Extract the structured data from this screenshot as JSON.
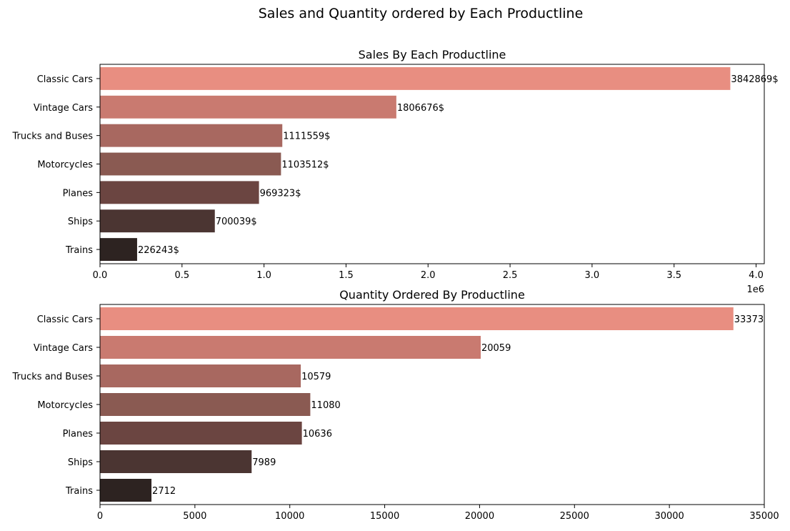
{
  "suptitle": "Sales and Quantity ordered by Each Productline",
  "chart_data": [
    {
      "type": "bar",
      "orientation": "horizontal",
      "title": "Sales By Each Productline",
      "xlabel": "",
      "ylabel": "",
      "categories": [
        "Classic Cars",
        "Vintage Cars",
        "Trucks and Buses",
        "Motorcycles",
        "Planes",
        "Ships",
        "Trains"
      ],
      "values": [
        3842869,
        1806676,
        1111559,
        1103512,
        969323,
        700039,
        226243
      ],
      "labels": [
        "3842869$",
        "1806676$",
        "1111559$",
        "1103512$",
        "969323$",
        "700039$",
        "226243$"
      ],
      "xlim": [
        0,
        4050000
      ],
      "xticks": [
        0,
        500000,
        1000000,
        1500000,
        2000000,
        2500000,
        3000000,
        3500000,
        4000000
      ],
      "xtick_labels": [
        "0.0",
        "0.5",
        "1.0",
        "1.5",
        "2.0",
        "2.5",
        "3.0",
        "3.5",
        "4.0"
      ],
      "offset_label": "1e6",
      "grid": false,
      "colors": [
        "#e88e81",
        "#c97a70",
        "#a86860",
        "#8a5a52",
        "#6b4541",
        "#4b3532",
        "#2d2321"
      ]
    },
    {
      "type": "bar",
      "orientation": "horizontal",
      "title": "Quantity Ordered By Productline",
      "xlabel": "",
      "ylabel": "",
      "categories": [
        "Classic Cars",
        "Vintage Cars",
        "Trucks and Buses",
        "Motorcycles",
        "Planes",
        "Ships",
        "Trains"
      ],
      "values": [
        33373,
        20059,
        10579,
        11080,
        10636,
        7989,
        2712
      ],
      "labels": [
        "33373",
        "20059",
        "10579",
        "11080",
        "10636",
        "7989",
        "2712"
      ],
      "xlim": [
        0,
        35000
      ],
      "xticks": [
        0,
        5000,
        10000,
        15000,
        20000,
        25000,
        30000,
        35000
      ],
      "xtick_labels": [
        "0",
        "5000",
        "10000",
        "15000",
        "20000",
        "25000",
        "30000",
        "35000"
      ],
      "grid": false,
      "colors": [
        "#e88e81",
        "#c97a70",
        "#a86860",
        "#8a5a52",
        "#6b4541",
        "#4b3532",
        "#2d2321"
      ]
    }
  ]
}
